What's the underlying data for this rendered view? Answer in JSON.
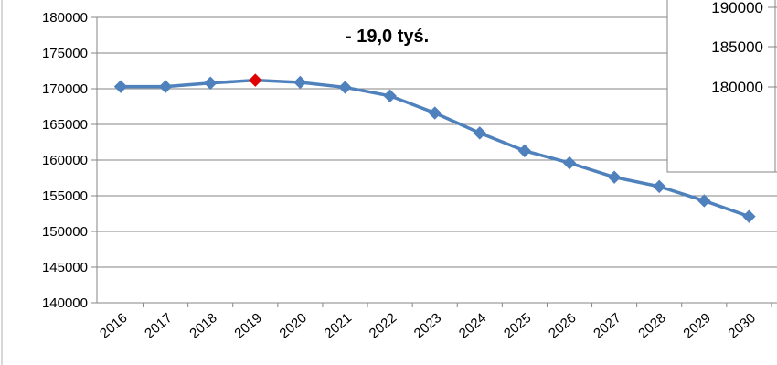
{
  "chart_data": {
    "type": "line",
    "categories": [
      "2016",
      "2017",
      "2018",
      "2019",
      "2020",
      "2021",
      "2022",
      "2023",
      "2024",
      "2025",
      "2026",
      "2027",
      "2028",
      "2029",
      "2030"
    ],
    "series": [
      {
        "values": [
          170300,
          170300,
          170800,
          171200,
          170900,
          170200,
          169000,
          166600,
          163800,
          161300,
          159600,
          157600,
          156300,
          154300,
          152100
        ],
        "color": "#4f81bd",
        "highlight_index": 3,
        "highlight_color": "#e00000"
      }
    ],
    "ylim": [
      140000,
      180000
    ],
    "yticks": [
      "140000",
      "145000",
      "150000",
      "155000",
      "160000",
      "165000",
      "170000",
      "175000",
      "180000"
    ],
    "grid": true,
    "annotation": "- 19,0 tyś.",
    "inset": {
      "yticks": [
        "190000",
        "185000",
        "180000"
      ]
    }
  }
}
